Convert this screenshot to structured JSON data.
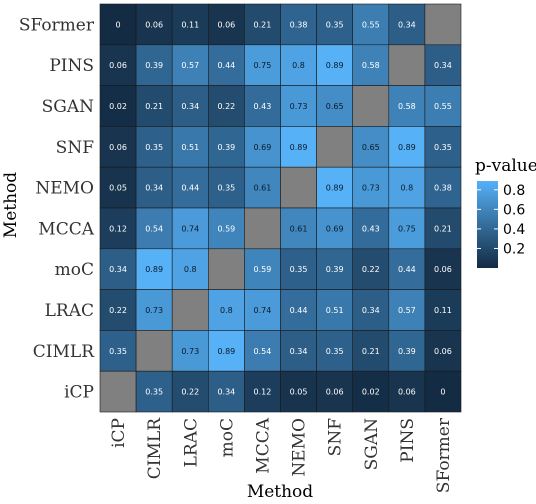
{
  "chart_data": {
    "type": "heatmap",
    "xlabel": "Method",
    "ylabel": "Method",
    "x_categories": [
      "iCP",
      "CIMLR",
      "LRAC",
      "moC",
      "MCCA",
      "NEMO",
      "SNF",
      "SGAN",
      "PINS",
      "SFormer"
    ],
    "y_categories_top_to_bottom": [
      "SFormer",
      "PINS",
      "SGAN",
      "SNF",
      "NEMO",
      "MCCA",
      "moC",
      "LRAC",
      "CIMLR",
      "iCP"
    ],
    "values": [
      [
        0,
        0.06,
        0.11,
        0.06,
        0.21,
        0.38,
        0.35,
        0.55,
        0.34,
        null
      ],
      [
        0.06,
        0.39,
        0.57,
        0.44,
        0.75,
        0.8,
        0.89,
        0.58,
        null,
        0.34
      ],
      [
        0.02,
        0.21,
        0.34,
        0.22,
        0.43,
        0.73,
        0.65,
        null,
        0.58,
        0.55
      ],
      [
        0.06,
        0.35,
        0.51,
        0.39,
        0.69,
        0.89,
        null,
        0.65,
        0.89,
        0.35
      ],
      [
        0.05,
        0.34,
        0.44,
        0.35,
        0.61,
        null,
        0.89,
        0.73,
        0.8,
        0.38
      ],
      [
        0.12,
        0.54,
        0.74,
        0.59,
        null,
        0.61,
        0.69,
        0.43,
        0.75,
        0.21
      ],
      [
        0.34,
        0.89,
        0.8,
        null,
        0.59,
        0.35,
        0.39,
        0.22,
        0.44,
        0.06
      ],
      [
        0.22,
        0.73,
        null,
        0.8,
        0.74,
        0.44,
        0.51,
        0.34,
        0.57,
        0.11
      ],
      [
        0.35,
        null,
        0.73,
        0.89,
        0.54,
        0.34,
        0.35,
        0.21,
        0.39,
        0.06
      ],
      [
        null,
        0.35,
        0.22,
        0.34,
        0.12,
        0.05,
        0.06,
        0.02,
        0.06,
        0
      ]
    ],
    "legend": {
      "title": "p-value",
      "ticks": [
        0.8,
        0.6,
        0.4,
        0.2
      ],
      "position": "right"
    },
    "na_color": "#808080",
    "color_low": "#132B43",
    "color_high": "#56B1F7",
    "value_range": [
      0,
      0.89
    ],
    "grid": false
  }
}
